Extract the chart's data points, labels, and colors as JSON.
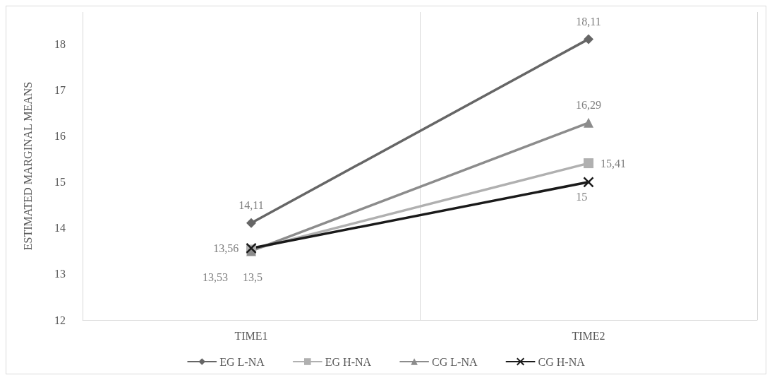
{
  "chart_data": {
    "type": "line",
    "ylabel": "ESTIMATED MARGINAL MEANS",
    "categories": [
      "TIME1",
      "TIME2"
    ],
    "series": [
      {
        "name": "EG L-NA",
        "color": "#666666",
        "marker": "diamond",
        "values": [
          14.11,
          18.11
        ],
        "value_labels": [
          "14,11",
          "18,11"
        ]
      },
      {
        "name": "EG H-NA",
        "color": "#b0b0b0",
        "marker": "square",
        "values": [
          13.53,
          15.41
        ],
        "value_labels": [
          "13,53",
          "15,41"
        ]
      },
      {
        "name": "CG L-NA",
        "color": "#8c8c8c",
        "marker": "triangle",
        "values": [
          13.5,
          16.29
        ],
        "value_labels": [
          "13,5",
          "16,29"
        ]
      },
      {
        "name": "CG H-NA",
        "color": "#1a1a1a",
        "marker": "cross",
        "values": [
          13.56,
          15
        ],
        "value_labels": [
          "13,56",
          "15"
        ]
      }
    ],
    "ylim": [
      12,
      18.7
    ],
    "yticks": [
      12,
      13,
      14,
      15,
      16,
      17,
      18
    ],
    "grid": "x",
    "legend": "bottom",
    "line_style": "solid"
  }
}
